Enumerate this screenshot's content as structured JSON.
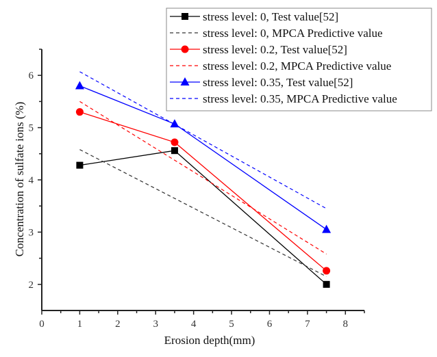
{
  "chart_data": {
    "type": "line",
    "title": "",
    "xlabel": "Erosion depth(mm)",
    "ylabel": "Concentration of sulfate ions (%)",
    "xlim": [
      0,
      8.5
    ],
    "ylim": [
      1.5,
      6.5
    ],
    "xticks": [
      0,
      1,
      2,
      3,
      4,
      5,
      6,
      7,
      8
    ],
    "xtick_labels": [
      "0",
      "1",
      "2",
      "3",
      "4",
      "5",
      "6",
      "7",
      "8"
    ],
    "yticks": [
      2,
      3,
      4,
      5,
      6
    ],
    "ytick_labels": [
      "2",
      "3",
      "4",
      "5",
      "6"
    ],
    "grid": false,
    "legend_position": "top-right",
    "series": [
      {
        "name": "stress level: 0, Test value[52]",
        "color": "#000000",
        "style": "solid",
        "marker": "square",
        "x": [
          1,
          3.5,
          7.5
        ],
        "y": [
          4.28,
          4.56,
          2.0
        ]
      },
      {
        "name": "stress level: 0, MPCA Predictive value",
        "color": "#333333",
        "style": "dashed",
        "marker": "none",
        "x": [
          1,
          7.5
        ],
        "y": [
          4.58,
          2.15
        ]
      },
      {
        "name": "stress level: 0.2, Test value[52]",
        "color": "#ff0000",
        "style": "solid",
        "marker": "circle",
        "x": [
          1,
          3.5,
          7.5
        ],
        "y": [
          5.3,
          4.72,
          2.26
        ]
      },
      {
        "name": "stress level: 0.2, MPCA Predictive value",
        "color": "#ff0000",
        "style": "dashed",
        "marker": "none",
        "x": [
          1,
          7.5
        ],
        "y": [
          5.5,
          2.58
        ]
      },
      {
        "name": "stress level: 0.35, Test value[52]",
        "color": "#0000ff",
        "style": "solid",
        "marker": "triangle",
        "x": [
          1,
          3.5,
          7.5
        ],
        "y": [
          5.8,
          5.07,
          3.05
        ]
      },
      {
        "name": "stress level: 0.35, MPCA Predictive value",
        "color": "#0000ff",
        "style": "dashed",
        "marker": "none",
        "x": [
          1,
          7.5
        ],
        "y": [
          6.07,
          3.45
        ]
      }
    ]
  }
}
